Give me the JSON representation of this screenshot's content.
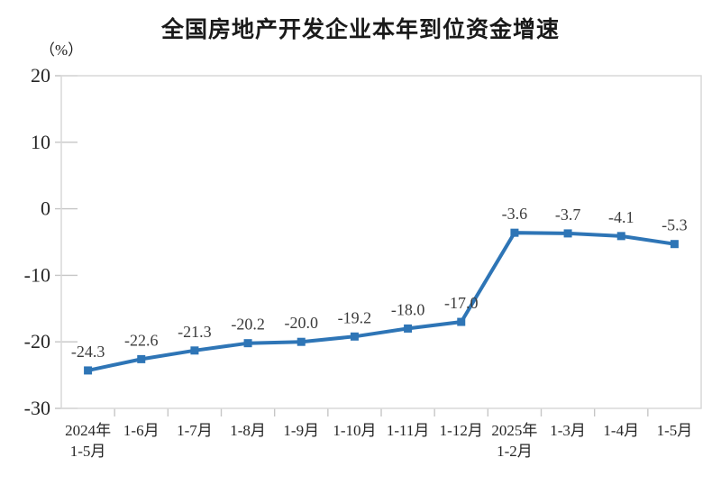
{
  "chart": {
    "title": "全国房地产开发企业本年到位资金增速",
    "unit_label": "（%）"
  },
  "chart_data": {
    "type": "line",
    "title": "全国房地产开发企业本年到位资金增速",
    "ylabel": "（%）",
    "categories": [
      "2024年\n1-5月",
      "1-6月",
      "1-7月",
      "1-8月",
      "1-9月",
      "1-10月",
      "1-11月",
      "1-12月",
      "2025年\n1-2月",
      "1-3月",
      "1-4月",
      "1-5月"
    ],
    "values": [
      -24.3,
      -22.6,
      -21.3,
      -20.2,
      -20.0,
      -19.2,
      -18.0,
      -17.0,
      -3.6,
      -3.7,
      -4.1,
      -5.3
    ],
    "value_labels": [
      "-24.3",
      "-22.6",
      "-21.3",
      "-20.2",
      "-20.0",
      "-19.2",
      "-18.0",
      "-17.0",
      "-3.6",
      "-3.7",
      "-4.1",
      "-5.3"
    ],
    "ylim": [
      -30,
      20
    ],
    "ytick_step": 10,
    "ytick_labels": [
      "20",
      "10",
      "0",
      "-10",
      "-20",
      "-30"
    ],
    "grid": false,
    "legend": "none",
    "line_color": "#2E75B6",
    "marker": "square",
    "axis_border_color": "#D9D9D9",
    "tick_color": "#C6C6C6",
    "label_color": "#3B3B3B",
    "axis_text_color": "#262626"
  }
}
